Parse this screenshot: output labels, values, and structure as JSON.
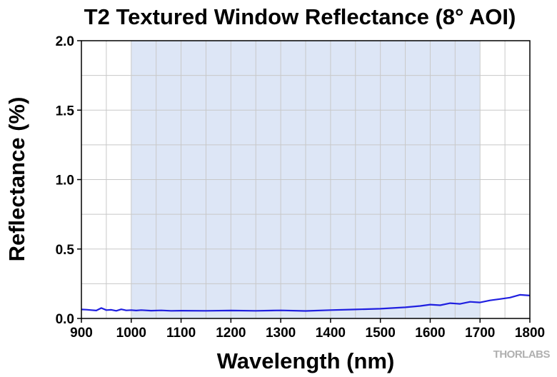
{
  "chart_data": {
    "type": "line",
    "title": "T2 Textured Window Reflectance (8° AOI)",
    "xlabel": "Wavelength (nm)",
    "ylabel": "Reflectance (%)",
    "xlim": [
      900,
      1800
    ],
    "ylim": [
      0,
      2.0
    ],
    "xticks": [
      "900",
      "1000",
      "1100",
      "1200",
      "1300",
      "1400",
      "1500",
      "1600",
      "1700",
      "1800"
    ],
    "yticks": [
      "0.0",
      "0.5",
      "1.0",
      "1.5",
      "2.0"
    ],
    "grid": true,
    "shaded_band": {
      "x_start": 1000,
      "x_end": 1700,
      "color": "#dde6f6"
    },
    "series": [
      {
        "color": "#1f1fe0",
        "x": [
          900,
          910,
          920,
          930,
          940,
          950,
          960,
          970,
          980,
          990,
          1000,
          1010,
          1020,
          1040,
          1060,
          1080,
          1100,
          1150,
          1200,
          1250,
          1300,
          1350,
          1400,
          1450,
          1500,
          1550,
          1580,
          1600,
          1620,
          1640,
          1660,
          1680,
          1700,
          1720,
          1740,
          1760,
          1780,
          1800
        ],
        "y": [
          0.065,
          0.063,
          0.06,
          0.057,
          0.075,
          0.06,
          0.062,
          0.055,
          0.066,
          0.058,
          0.06,
          0.057,
          0.06,
          0.056,
          0.058,
          0.055,
          0.056,
          0.055,
          0.057,
          0.055,
          0.058,
          0.054,
          0.06,
          0.065,
          0.07,
          0.08,
          0.09,
          0.1,
          0.095,
          0.11,
          0.105,
          0.12,
          0.115,
          0.13,
          0.14,
          0.15,
          0.17,
          0.165
        ]
      }
    ]
  },
  "watermark": "THORLABS"
}
